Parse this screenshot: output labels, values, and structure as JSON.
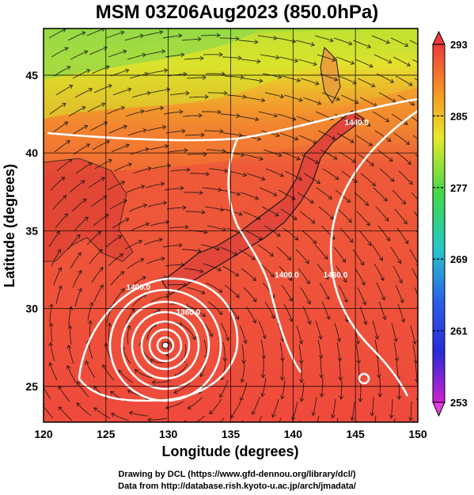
{
  "title": "MSM 03Z06Aug2023 (850.0hPa)",
  "map": {
    "x_axis": {
      "label": "Longitude (degrees)",
      "min": 120,
      "max": 150,
      "ticks": [
        "120",
        "125",
        "130",
        "135",
        "140",
        "145",
        "150"
      ]
    },
    "y_axis": {
      "label": "Latitude  (degrees)",
      "min": 22.7,
      "max": 48,
      "ticks": [
        "25",
        "30",
        "35",
        "40",
        "45"
      ]
    },
    "colorbar": {
      "min": 253,
      "max": 293,
      "ticks": [
        "293",
        "285",
        "277",
        "269",
        "261",
        "253"
      ]
    },
    "contours": [
      {
        "label": "1400.0",
        "lon": 127.6,
        "lat": 31.2
      },
      {
        "label": "1360.0",
        "lon": 131.6,
        "lat": 29.6
      },
      {
        "label": "1400.0",
        "lon": 139.5,
        "lat": 32.0
      },
      {
        "label": "1460.0",
        "lon": 143.4,
        "lat": 32.0
      },
      {
        "label": "1440.0",
        "lon": 145.1,
        "lat": 41.8
      }
    ],
    "colors": {
      "warm": "#ef4a3c",
      "mid": "#f58a2a",
      "yellow": "#e3ea2b",
      "green": "#7fd84a"
    }
  },
  "credits": {
    "line1": "Drawing by DCL (https://www.gfd-dennou.org/library/dcl/)",
    "line2": "Data from http://database.rish.kyoto-u.ac.jp/arch/jmadata/"
  }
}
